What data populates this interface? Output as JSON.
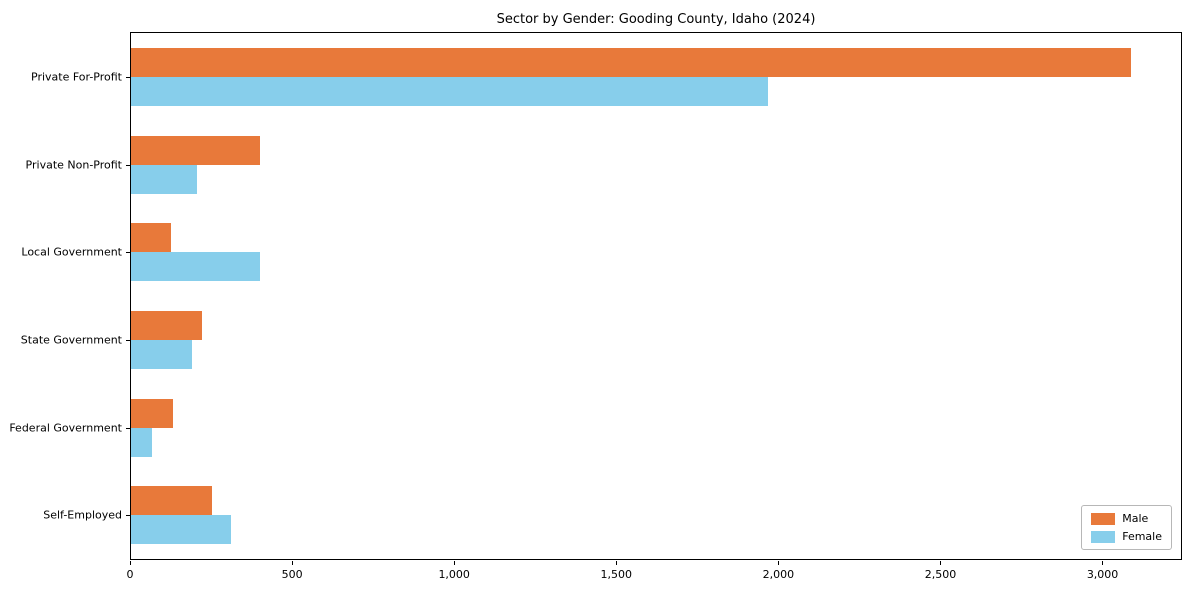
{
  "chart_data": {
    "type": "bar",
    "orientation": "horizontal",
    "title": "Sector by Gender: Gooding County, Idaho (2024)",
    "xlabel": "",
    "ylabel": "",
    "categories": [
      "Private For-Profit",
      "Private Non-Profit",
      "Local Government",
      "State Government",
      "Federal Government",
      "Self-Employed"
    ],
    "series": [
      {
        "name": "Male",
        "color": "#e8793a",
        "values": [
          3090,
          400,
          125,
          220,
          130,
          250
        ]
      },
      {
        "name": "Female",
        "color": "#87ceeb",
        "values": [
          1970,
          205,
          400,
          190,
          65,
          310
        ]
      }
    ],
    "xlim": [
      0,
      3245
    ],
    "xticks": [
      0,
      500,
      1000,
      1500,
      2000,
      2500,
      3000
    ],
    "xtick_labels": [
      "0",
      "500",
      "1,000",
      "1,500",
      "2,000",
      "2,500",
      "3,000"
    ],
    "grid": false,
    "legend_position": "lower right"
  }
}
